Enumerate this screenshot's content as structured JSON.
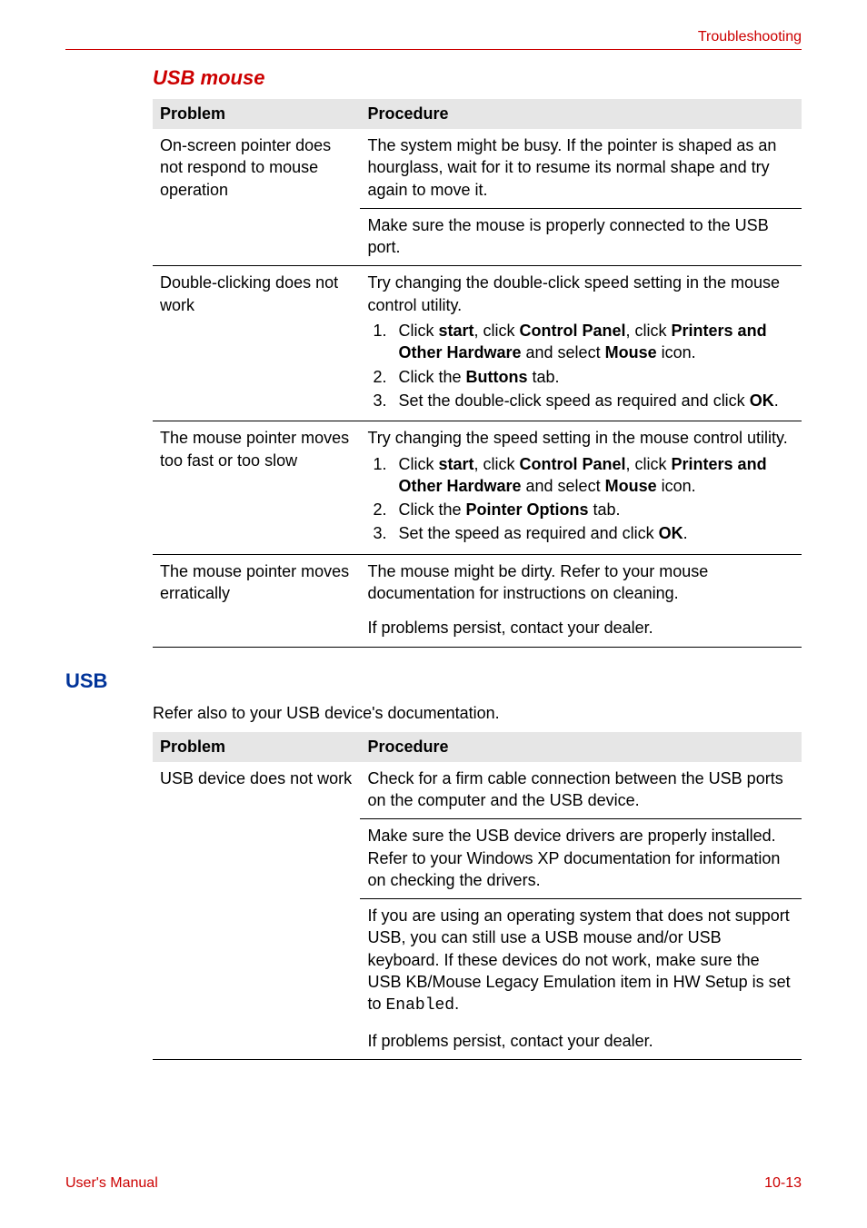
{
  "header": {
    "section": "Troubleshooting"
  },
  "colors": {
    "accent_red": "#cc0000",
    "accent_blue": "#003399",
    "table_header_bg": "#e6e6e6",
    "rule": "#000000",
    "text": "#000000"
  },
  "section_usb_mouse": {
    "title": "USB mouse",
    "columns": {
      "problem": "Problem",
      "procedure": "Procedure"
    },
    "rows": [
      {
        "problem": "On-screen pointer does not respond to mouse operation",
        "procedures": [
          {
            "text": "The system might be busy. If the pointer is shaped as an hourglass, wait for it to resume its normal shape and try again to move it."
          },
          {
            "text": "Make sure the mouse is properly connected to the USB port."
          }
        ]
      },
      {
        "problem": "Double-clicking does not work",
        "procedures": [
          {
            "text": "Try changing the double-click speed setting in the mouse control utility.",
            "list": [
              {
                "pre": "Click ",
                "b1": "start",
                "mid1": ", click ",
                "b2": "Control Panel",
                "mid2": ", click ",
                "b3": "Printers and Other Hardware",
                "mid3": " and select ",
                "b4": "Mouse",
                "post": " icon."
              },
              {
                "pre": "Click the ",
                "b1": "Buttons",
                "post": " tab."
              },
              {
                "pre": "Set the double-click speed as required and click ",
                "b1": "OK",
                "post": "."
              }
            ]
          }
        ]
      },
      {
        "problem": "The mouse pointer moves too fast or too slow",
        "procedures": [
          {
            "text": "Try changing the speed setting in the mouse control utility.",
            "list": [
              {
                "pre": "Click ",
                "b1": "start",
                "mid1": ", click ",
                "b2": "Control Panel",
                "mid2": ", click ",
                "b3": "Printers and Other Hardware",
                "mid3": " and select ",
                "b4": "Mouse",
                "post": " icon."
              },
              {
                "pre": "Click the ",
                "b1": "Pointer Options",
                "post": " tab."
              },
              {
                "pre": "Set the speed as required and click ",
                "b1": "OK",
                "post": "."
              }
            ]
          }
        ]
      },
      {
        "problem": "The mouse pointer moves erratically",
        "procedures": [
          {
            "text": "The mouse might be dirty. Refer to your mouse documentation for instructions on cleaning."
          },
          {
            "text": "If problems persist, contact your dealer."
          }
        ]
      }
    ]
  },
  "section_usb": {
    "title": "USB",
    "intro": "Refer also to your USB device's documentation.",
    "columns": {
      "problem": "Problem",
      "procedure": "Procedure"
    },
    "rows": [
      {
        "problem": "USB device does not work",
        "procedures": [
          {
            "text": "Check for a firm cable connection between the USB ports on the computer and the USB device."
          },
          {
            "text": "Make sure the USB device drivers are properly installed. Refer to your Windows XP documentation for information on checking the drivers."
          },
          {
            "text_pre": "If you are using an operating system that does not support USB, you can still use a USB mouse and/or USB keyboard. If these devices do not work, make sure the USB KB/Mouse Legacy Emulation item in HW Setup is set to ",
            "mono": "Enabled",
            "text_post": "."
          },
          {
            "text": "If problems persist, contact your dealer."
          }
        ]
      }
    ]
  },
  "footer": {
    "left": "User's Manual",
    "right": "10-13"
  }
}
